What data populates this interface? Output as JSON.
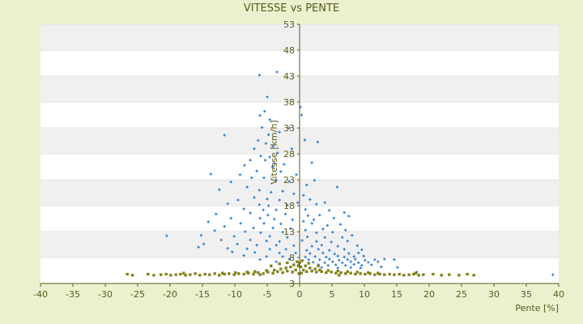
{
  "chart_data": {
    "type": "scatter",
    "title": "VITESSE vs PENTE",
    "xlabel": "Pente [%]",
    "ylabel": "Vitesse [km/h]",
    "xlim": [
      -40,
      40
    ],
    "ylim": [
      3,
      53
    ],
    "x_ticks": [
      "-40",
      "-35",
      "-30",
      "-25",
      "-20",
      "-15",
      "-10",
      "-5",
      "0",
      "5",
      "10",
      "15",
      "20",
      "25",
      "30",
      "35",
      "40"
    ],
    "y_ticks": [
      "3",
      "8",
      "13",
      "18",
      "23",
      "28",
      "33",
      "38",
      "43",
      "48",
      "53"
    ],
    "grid": "horizontal bands",
    "legend": "none",
    "colors": {
      "background": "#ebf1cf",
      "plot_area": "#ffffff",
      "band": "#f0f0f0",
      "blue_series": "#2a7fd4",
      "olive_series": "#8a8a10",
      "text": "#5a5a1a"
    },
    "series": [
      {
        "color": "#2a7fd4",
        "points": [
          [
            -6.2,
            43.2
          ],
          [
            -3.5,
            43.8
          ],
          [
            -5.0,
            39.0
          ],
          [
            -5.4,
            36.2
          ],
          [
            -6.1,
            35.4
          ],
          [
            -4.6,
            34.6
          ],
          [
            -5.8,
            33.1
          ],
          [
            -11.6,
            31.6
          ],
          [
            -4.8,
            31.7
          ],
          [
            -6.4,
            30.6
          ],
          [
            -3.1,
            32.2
          ],
          [
            -1.6,
            33.0
          ],
          [
            -5.2,
            30.0
          ],
          [
            2.8,
            30.3
          ],
          [
            0.8,
            30.7
          ],
          [
            -4.1,
            29.4
          ],
          [
            -7.0,
            29.0
          ],
          [
            -1.2,
            29.0
          ],
          [
            -3.4,
            28.2
          ],
          [
            -6.0,
            27.6
          ],
          [
            -4.6,
            27.4
          ],
          [
            -5.3,
            26.8
          ],
          [
            -7.6,
            26.8
          ],
          [
            -3.9,
            26.2
          ],
          [
            -2.4,
            26.0
          ],
          [
            1.9,
            26.3
          ],
          [
            -8.5,
            25.8
          ],
          [
            -4.2,
            25.5
          ],
          [
            -6.6,
            24.7
          ],
          [
            -9.2,
            24.0
          ],
          [
            -13.7,
            24.1
          ],
          [
            -2.9,
            24.6
          ],
          [
            -0.5,
            24.0
          ],
          [
            -5.5,
            23.4
          ],
          [
            -7.4,
            23.4
          ],
          [
            -10.6,
            22.6
          ],
          [
            -3.6,
            23.0
          ],
          [
            -1.6,
            22.7
          ],
          [
            1.1,
            22.0
          ],
          [
            2.3,
            22.9
          ],
          [
            5.8,
            21.6
          ],
          [
            -12.4,
            21.1
          ],
          [
            -8.1,
            21.6
          ],
          [
            -6.2,
            21.0
          ],
          [
            -4.4,
            20.6
          ],
          [
            -2.6,
            20.8
          ],
          [
            -0.9,
            20.3
          ],
          [
            0.6,
            20.0
          ],
          [
            -7.0,
            19.6
          ],
          [
            -9.5,
            19.1
          ],
          [
            -5.0,
            19.3
          ],
          [
            -3.1,
            19.1
          ],
          [
            1.6,
            19.2
          ],
          [
            3.9,
            18.6
          ],
          [
            -11.1,
            18.4
          ],
          [
            -6.2,
            18.2
          ],
          [
            -4.8,
            18.0
          ],
          [
            -1.9,
            18.1
          ],
          [
            -0.3,
            18.6
          ],
          [
            2.6,
            18.3
          ],
          [
            -8.6,
            17.4
          ],
          [
            -5.6,
            17.2
          ],
          [
            -3.6,
            17.2
          ],
          [
            0.9,
            17.3
          ],
          [
            4.6,
            17.1
          ],
          [
            6.9,
            16.7
          ],
          [
            -12.9,
            16.4
          ],
          [
            -7.6,
            16.6
          ],
          [
            -4.9,
            16.2
          ],
          [
            -2.2,
            16.4
          ],
          [
            1.3,
            16.1
          ],
          [
            3.1,
            16.2
          ],
          [
            7.6,
            16.0
          ],
          [
            -10.6,
            15.6
          ],
          [
            -6.1,
            15.6
          ],
          [
            -3.9,
            15.4
          ],
          [
            -1.1,
            15.3
          ],
          [
            0.6,
            15.0
          ],
          [
            2.2,
            15.3
          ],
          [
            5.3,
            15.6
          ],
          [
            -14.1,
            14.9
          ],
          [
            -9.1,
            14.6
          ],
          [
            -5.5,
            14.6
          ],
          [
            -2.9,
            14.5
          ],
          [
            1.9,
            14.6
          ],
          [
            4.3,
            14.2
          ],
          [
            6.3,
            14.4
          ],
          [
            -11.6,
            14.0
          ],
          [
            -7.1,
            13.7
          ],
          [
            -4.1,
            13.7
          ],
          [
            -1.4,
            13.6
          ],
          [
            0.9,
            13.3
          ],
          [
            3.6,
            13.5
          ],
          [
            7.1,
            13.3
          ],
          [
            -13.1,
            13.2
          ],
          [
            -8.4,
            13.0
          ],
          [
            -6.0,
            12.8
          ],
          [
            -2.6,
            12.9
          ],
          [
            2.6,
            12.8
          ],
          [
            5.1,
            12.9
          ],
          [
            -20.5,
            12.2
          ],
          [
            -15.2,
            12.3
          ],
          [
            -10.1,
            12.1
          ],
          [
            -4.6,
            12.1
          ],
          [
            -1.9,
            11.9
          ],
          [
            1.2,
            12.0
          ],
          [
            3.9,
            11.9
          ],
          [
            6.6,
            11.9
          ],
          [
            8.1,
            12.3
          ],
          [
            -12.1,
            11.4
          ],
          [
            -7.6,
            11.4
          ],
          [
            -5.1,
            11.2
          ],
          [
            -3.1,
            11.1
          ],
          [
            0.4,
            11.3
          ],
          [
            2.6,
            11.1
          ],
          [
            4.9,
            11.0
          ],
          [
            7.4,
            11.2
          ],
          [
            -14.8,
            10.6
          ],
          [
            -9.6,
            10.6
          ],
          [
            -6.6,
            10.4
          ],
          [
            -3.6,
            10.4
          ],
          [
            -0.9,
            10.3
          ],
          [
            1.9,
            10.2
          ],
          [
            3.4,
            10.4
          ],
          [
            5.9,
            10.2
          ],
          [
            8.9,
            10.3
          ],
          [
            -15.6,
            10.0
          ],
          [
            -11.1,
            9.8
          ],
          [
            -8.1,
            9.7
          ],
          [
            -4.6,
            9.6
          ],
          [
            -2.1,
            9.6
          ],
          [
            1.1,
            9.4
          ],
          [
            2.9,
            9.6
          ],
          [
            4.6,
            9.4
          ],
          [
            6.9,
            9.6
          ],
          [
            9.6,
            9.5
          ],
          [
            -10.4,
            9.1
          ],
          [
            -6.9,
            9.0
          ],
          [
            -3.1,
            8.9
          ],
          [
            -0.6,
            8.9
          ],
          [
            1.6,
            8.8
          ],
          [
            3.6,
            8.9
          ],
          [
            5.4,
            8.7
          ],
          [
            7.6,
            8.8
          ],
          [
            9.1,
            8.9
          ],
          [
            -8.6,
            8.4
          ],
          [
            -5.1,
            8.2
          ],
          [
            -2.6,
            8.2
          ],
          [
            0.9,
            8.1
          ],
          [
            2.4,
            8.2
          ],
          [
            4.1,
            8.1
          ],
          [
            5.9,
            8.3
          ],
          [
            6.9,
            8.1
          ],
          [
            8.4,
            8.2
          ],
          [
            9.9,
            8.3
          ],
          [
            -6.1,
            7.6
          ],
          [
            -1.6,
            7.7
          ],
          [
            1.4,
            7.6
          ],
          [
            3.1,
            7.6
          ],
          [
            4.6,
            7.7
          ],
          [
            6.1,
            7.5
          ],
          [
            7.4,
            7.6
          ],
          [
            8.6,
            7.7
          ],
          [
            10.1,
            7.5
          ],
          [
            11.6,
            7.6
          ],
          [
            13.1,
            7.7
          ],
          [
            14.6,
            7.6
          ],
          [
            -3.6,
            7.2
          ],
          [
            2.1,
            7.1
          ],
          [
            3.9,
            7.0
          ],
          [
            5.1,
            7.2
          ],
          [
            6.6,
            7.0
          ],
          [
            7.9,
            7.2
          ],
          [
            9.1,
            7.0
          ],
          [
            10.6,
            7.1
          ],
          [
            12.1,
            7.2
          ],
          [
            -0.1,
            6.6
          ],
          [
            2.9,
            6.6
          ],
          [
            4.4,
            6.5
          ],
          [
            5.6,
            6.6
          ],
          [
            7.1,
            6.5
          ],
          [
            8.4,
            6.7
          ],
          [
            9.6,
            6.5
          ],
          [
            11.1,
            6.6
          ],
          [
            15.1,
            6.1
          ],
          [
            3.4,
            6.1
          ],
          [
            5.9,
            6.0
          ],
          [
            7.9,
            6.1
          ],
          [
            9.4,
            6.0
          ],
          [
            12.6,
            6.2
          ],
          [
            18.1,
            5.2
          ],
          [
            39.1,
            4.7
          ],
          [
            0.1,
            37.0
          ],
          [
            0.3,
            35.5
          ]
        ]
      },
      {
        "color": "#8a8a10",
        "points": [
          [
            -26.6,
            4.8
          ],
          [
            -25.8,
            4.6
          ],
          [
            -23.4,
            4.8
          ],
          [
            -22.5,
            4.6
          ],
          [
            -21.4,
            4.7
          ],
          [
            -20.6,
            4.8
          ],
          [
            -19.9,
            4.6
          ],
          [
            -19.1,
            4.7
          ],
          [
            -18.4,
            4.8
          ],
          [
            -17.6,
            4.6
          ],
          [
            -16.9,
            4.7
          ],
          [
            -16.1,
            4.9
          ],
          [
            -15.4,
            4.6
          ],
          [
            -14.6,
            4.8
          ],
          [
            -13.9,
            4.7
          ],
          [
            -13.1,
            4.9
          ],
          [
            -12.4,
            4.6
          ],
          [
            -11.6,
            4.8
          ],
          [
            -10.9,
            4.9
          ],
          [
            -10.1,
            4.7
          ],
          [
            -9.4,
            4.9
          ],
          [
            -8.6,
            4.8
          ],
          [
            -7.9,
            5.0
          ],
          [
            -7.1,
            4.8
          ],
          [
            -6.4,
            5.1
          ],
          [
            -5.6,
            4.9
          ],
          [
            -4.9,
            5.2
          ],
          [
            -4.1,
            5.0
          ],
          [
            -3.4,
            5.3
          ],
          [
            -2.6,
            5.1
          ],
          [
            -1.9,
            5.4
          ],
          [
            -1.1,
            5.2
          ],
          [
            -0.6,
            5.6
          ],
          [
            -0.2,
            6.4
          ],
          [
            0.0,
            7.0
          ],
          [
            0.2,
            6.2
          ],
          [
            0.6,
            5.6
          ],
          [
            1.1,
            5.3
          ],
          [
            1.9,
            5.4
          ],
          [
            2.6,
            5.2
          ],
          [
            3.4,
            5.3
          ],
          [
            4.1,
            5.1
          ],
          [
            4.9,
            5.2
          ],
          [
            5.6,
            5.0
          ],
          [
            6.4,
            5.1
          ],
          [
            7.1,
            4.9
          ],
          [
            7.9,
            5.0
          ],
          [
            8.6,
            4.8
          ],
          [
            9.4,
            4.9
          ],
          [
            10.1,
            4.8
          ],
          [
            10.9,
            4.9
          ],
          [
            11.6,
            4.7
          ],
          [
            12.4,
            4.8
          ],
          [
            13.1,
            4.7
          ],
          [
            13.9,
            4.8
          ],
          [
            14.6,
            4.7
          ],
          [
            15.4,
            4.8
          ],
          [
            16.1,
            4.6
          ],
          [
            16.9,
            4.7
          ],
          [
            17.6,
            4.8
          ],
          [
            18.4,
            4.6
          ],
          [
            19.1,
            4.7
          ],
          [
            20.6,
            4.8
          ],
          [
            21.9,
            4.6
          ],
          [
            23.1,
            4.7
          ],
          [
            24.6,
            4.6
          ],
          [
            25.9,
            4.8
          ],
          [
            26.9,
            4.6
          ],
          [
            -11.9,
            5.0
          ],
          [
            -9.9,
            5.1
          ],
          [
            -8.1,
            5.2
          ],
          [
            -6.9,
            5.3
          ],
          [
            -5.1,
            5.5
          ],
          [
            -3.9,
            5.6
          ],
          [
            -2.9,
            5.8
          ],
          [
            -2.1,
            6.0
          ],
          [
            -1.4,
            6.2
          ],
          [
            -0.9,
            6.6
          ],
          [
            -0.4,
            7.2
          ],
          [
            0.4,
            7.4
          ],
          [
            0.9,
            6.4
          ],
          [
            1.6,
            6.0
          ],
          [
            2.4,
            5.8
          ],
          [
            3.1,
            5.6
          ],
          [
            4.4,
            5.5
          ],
          [
            5.9,
            5.4
          ],
          [
            7.4,
            5.3
          ],
          [
            8.9,
            5.2
          ],
          [
            10.6,
            5.1
          ],
          [
            12.1,
            5.0
          ],
          [
            -4.4,
            6.4
          ],
          [
            -3.1,
            6.8
          ],
          [
            -1.9,
            7.0
          ],
          [
            1.4,
            6.9
          ],
          [
            2.9,
            6.4
          ],
          [
            -0.1,
            4.9
          ],
          [
            0.3,
            5.0
          ],
          [
            -6.1,
            4.7
          ],
          [
            6.1,
            4.6
          ],
          [
            -17.9,
            5.0
          ],
          [
            17.9,
            5.0
          ]
        ]
      }
    ]
  }
}
